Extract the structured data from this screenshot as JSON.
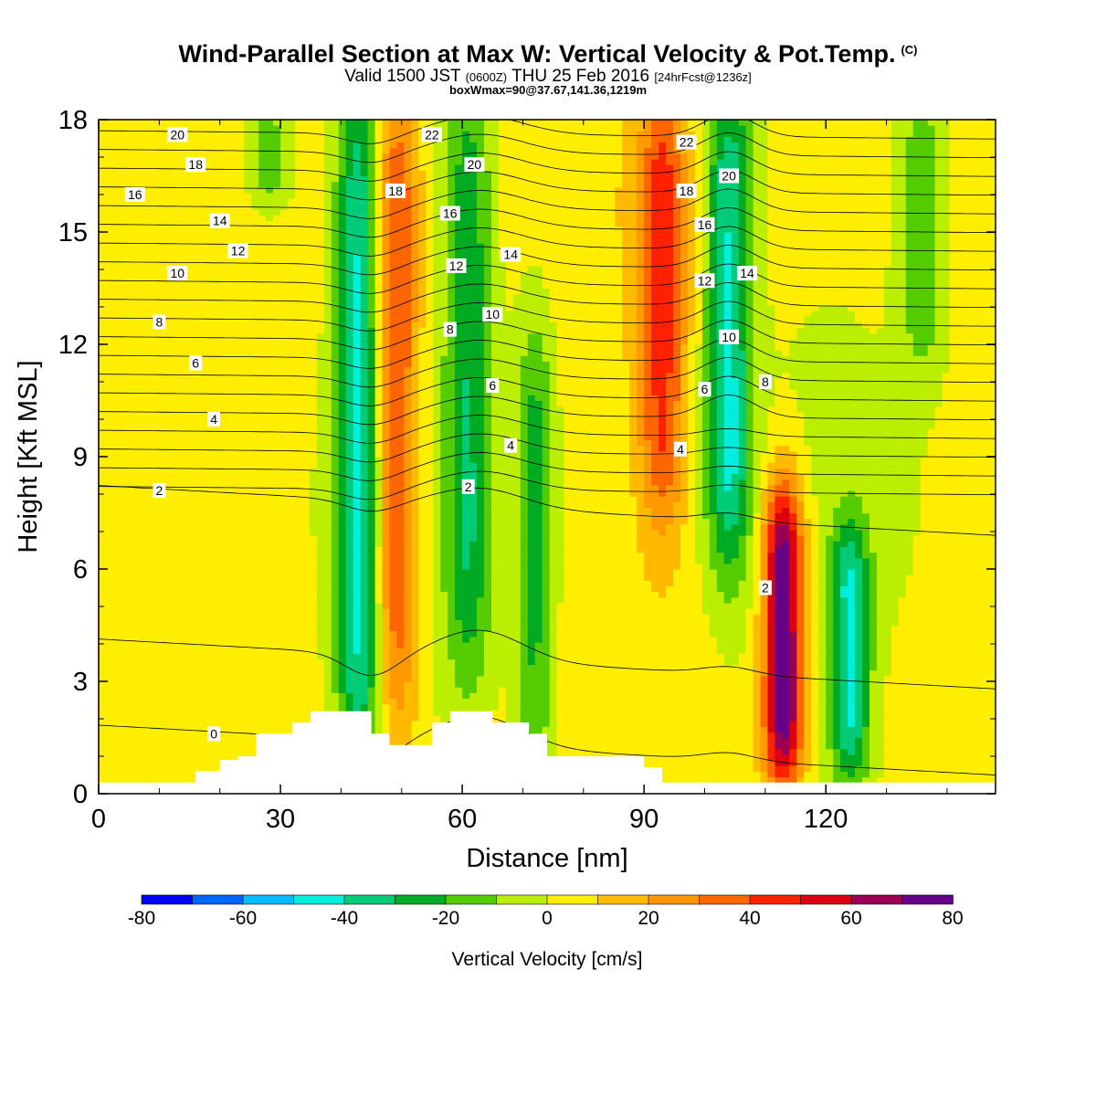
{
  "title": {
    "main": "Wind-Parallel Section at Max W: Vertical Velocity & Pot.Temp.",
    "copyright": "(C)",
    "valid_prefix": "Valid 1500 JST",
    "valid_utc": "(0600Z)",
    "valid_date": "THU 25 Feb 2016",
    "forecast": "[24hrFcst@1236z]",
    "box_info": "boxWmax=90@37.67,141.36,1219m"
  },
  "colors": {
    "palette": [
      "#0000ff",
      "#0066ff",
      "#00bbff",
      "#00eedd",
      "#00cc77",
      "#00aa22",
      "#55cc00",
      "#bbee00",
      "#ffee00",
      "#ffbb00",
      "#ff9900",
      "#ff6600",
      "#ff2200",
      "#dd0011",
      "#990055",
      "#660088"
    ],
    "terrain": "#ffffff",
    "contour": "#000000"
  },
  "chart_data": {
    "type": "heatmap",
    "xlabel": "Distance [nm]",
    "ylabel": "Height [Kft MSL]",
    "xlim": [
      0,
      148
    ],
    "ylim": [
      0,
      18
    ],
    "xticks": [
      0,
      30,
      60,
      90,
      120
    ],
    "yticks": [
      0,
      3,
      6,
      9,
      12,
      15,
      18
    ],
    "colorbar": {
      "label": "Vertical Velocity [cm/s]",
      "levels": [
        -80,
        -70,
        -60,
        -50,
        -40,
        -30,
        -20,
        -10,
        0,
        10,
        20,
        30,
        40,
        50,
        60,
        70,
        80
      ],
      "tick_labels": [
        "-80",
        "-60",
        "-40",
        "-20",
        "0",
        "20",
        "40",
        "60",
        "80"
      ]
    },
    "vertical_velocity_features": [
      {
        "x": 43,
        "z_range": [
          1.5,
          18
        ],
        "w_min": -45
      },
      {
        "x": 49,
        "z_range": [
          3,
          18
        ],
        "w_max": 42
      },
      {
        "x": 61,
        "z_range": [
          4,
          18
        ],
        "w_min": -30
      },
      {
        "x": 72,
        "z_range": [
          0.8,
          12
        ],
        "w_min": -25
      },
      {
        "x": 93,
        "z_range": [
          8,
          18
        ],
        "w_max": 38
      },
      {
        "x": 104,
        "z_range": [
          7,
          18
        ],
        "w_min": -45
      },
      {
        "x": 113,
        "z_range": [
          1,
          7.5
        ],
        "w_max": 78
      },
      {
        "x": 124,
        "z_range": [
          1,
          6.5
        ],
        "w_min": -42
      },
      {
        "x": 28,
        "z_range": [
          16,
          18
        ],
        "w_min": -20
      },
      {
        "x": 136,
        "z_range": [
          12,
          18
        ],
        "w_min": -20
      }
    ],
    "terrain_kft": [
      {
        "x": [
          0,
          16
        ],
        "z": 0.3
      },
      {
        "x": [
          16,
          20
        ],
        "z": 0.6
      },
      {
        "x": [
          20,
          23
        ],
        "z": 0.9
      },
      {
        "x": [
          23,
          26
        ],
        "z": 1.0
      },
      {
        "x": [
          26,
          32
        ],
        "z": 1.6
      },
      {
        "x": [
          32,
          35
        ],
        "z": 1.9
      },
      {
        "x": [
          35,
          45
        ],
        "z": 2.2
      },
      {
        "x": [
          45,
          48
        ],
        "z": 1.6
      },
      {
        "x": [
          48,
          55
        ],
        "z": 1.3
      },
      {
        "x": [
          55,
          58
        ],
        "z": 1.9
      },
      {
        "x": [
          58,
          65
        ],
        "z": 2.2
      },
      {
        "x": [
          65,
          71
        ],
        "z": 1.9
      },
      {
        "x": [
          71,
          74
        ],
        "z": 1.6
      },
      {
        "x": [
          74,
          90
        ],
        "z": 1.0
      },
      {
        "x": [
          90,
          93
        ],
        "z": 0.7
      },
      {
        "x": [
          93,
          148
        ],
        "z": 0.3
      }
    ],
    "theta_contour_labels": [
      {
        "text": "0",
        "x": 19,
        "z": 1.6
      },
      {
        "text": "2",
        "x": 10,
        "z": 8.1
      },
      {
        "text": "2",
        "x": 61,
        "z": 8.2
      },
      {
        "text": "2",
        "x": 110,
        "z": 5.5
      },
      {
        "text": "4",
        "x": 19,
        "z": 10.0
      },
      {
        "text": "4",
        "x": 68,
        "z": 9.3
      },
      {
        "text": "4",
        "x": 96,
        "z": 9.2
      },
      {
        "text": "6",
        "x": 16,
        "z": 11.5
      },
      {
        "text": "6",
        "x": 65,
        "z": 10.9
      },
      {
        "text": "6",
        "x": 100,
        "z": 10.8
      },
      {
        "text": "8",
        "x": 10,
        "z": 12.6
      },
      {
        "text": "8",
        "x": 58,
        "z": 12.4
      },
      {
        "text": "8",
        "x": 110,
        "z": 11.0
      },
      {
        "text": "10",
        "x": 13,
        "z": 13.9
      },
      {
        "text": "10",
        "x": 65,
        "z": 12.8
      },
      {
        "text": "10",
        "x": 104,
        "z": 12.2
      },
      {
        "text": "12",
        "x": 23,
        "z": 14.5
      },
      {
        "text": "12",
        "x": 59,
        "z": 14.1
      },
      {
        "text": "12",
        "x": 100,
        "z": 13.7
      },
      {
        "text": "14",
        "x": 20,
        "z": 15.3
      },
      {
        "text": "14",
        "x": 68,
        "z": 14.4
      },
      {
        "text": "14",
        "x": 107,
        "z": 13.9
      },
      {
        "text": "16",
        "x": 6,
        "z": 16.0
      },
      {
        "text": "16",
        "x": 58,
        "z": 15.5
      },
      {
        "text": "16",
        "x": 100,
        "z": 15.2
      },
      {
        "text": "18",
        "x": 16,
        "z": 16.8
      },
      {
        "text": "18",
        "x": 49,
        "z": 16.1
      },
      {
        "text": "18",
        "x": 97,
        "z": 16.1
      },
      {
        "text": "20",
        "x": 13,
        "z": 17.6
      },
      {
        "text": "20",
        "x": 62,
        "z": 16.8
      },
      {
        "text": "20",
        "x": 104,
        "z": 16.5
      },
      {
        "text": "22",
        "x": 55,
        "z": 17.6
      },
      {
        "text": "22",
        "x": 97,
        "z": 17.4
      }
    ]
  }
}
